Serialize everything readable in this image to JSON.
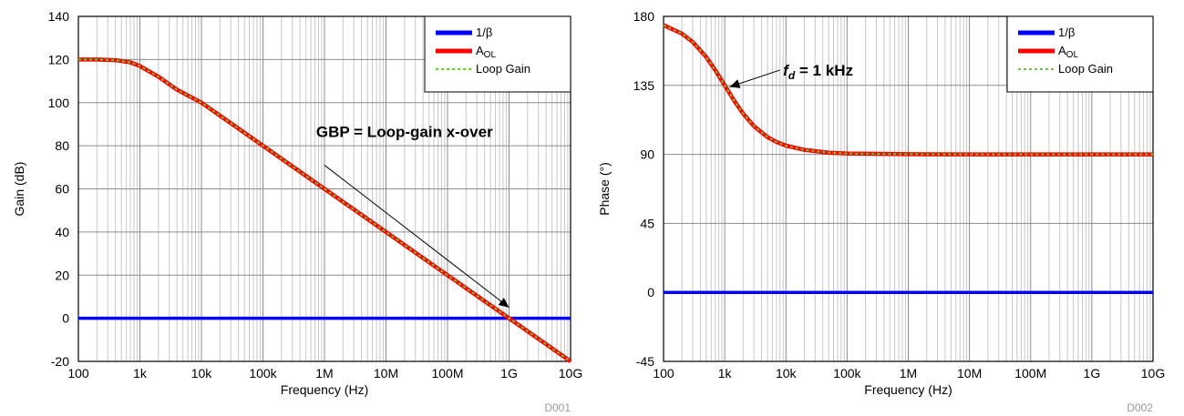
{
  "chart_data": [
    {
      "id": "D001",
      "type": "line",
      "title": "",
      "xlabel": "Frequency (Hz)",
      "ylabel": "Gain (dB)",
      "xscale": "log",
      "xlim": [
        100,
        10000000000
      ],
      "ylim": [
        -20,
        140
      ],
      "x_ticks": [
        100,
        1000,
        10000,
        100000,
        1000000,
        10000000,
        100000000,
        1000000000,
        10000000000
      ],
      "x_tick_labels": [
        "100",
        "1k",
        "10k",
        "100k",
        "1M",
        "10M",
        "100M",
        "1G",
        "10G"
      ],
      "y_ticks": [
        -20,
        0,
        20,
        40,
        60,
        80,
        100,
        120,
        140
      ],
      "y_tick_labels": [
        "-20",
        "0",
        "20",
        "40",
        "60",
        "80",
        "100",
        "120",
        "140"
      ],
      "grid": true,
      "legend_position": "top-right",
      "legend": [
        "1/β",
        "A_OL",
        "Loop Gain"
      ],
      "legend_parts": [
        [
          "1/β",
          ""
        ],
        [
          "A",
          "OL"
        ],
        [
          "Loop Gain",
          ""
        ]
      ],
      "series": [
        {
          "name": "1/β",
          "color": "#0000ff",
          "style": "solid",
          "x": [
            100,
            10000000000
          ],
          "y": [
            0,
            0
          ]
        },
        {
          "name": "A_OL",
          "color": "#ff0000",
          "style": "solid",
          "x": [
            100,
            200,
            400,
            700,
            1000,
            2000,
            4000,
            10000,
            100000,
            1000000,
            10000000,
            100000000,
            1000000000,
            10000000000
          ],
          "y": [
            120,
            120,
            119.7,
            118.7,
            117,
            112,
            106,
            100,
            80,
            60,
            40,
            20,
            0,
            -20
          ]
        },
        {
          "name": "Loop Gain",
          "color": "#66cc33",
          "style": "dashed",
          "x": [
            100,
            200,
            400,
            700,
            1000,
            2000,
            4000,
            10000,
            100000,
            1000000,
            10000000,
            100000000,
            1000000000,
            10000000000
          ],
          "y": [
            120,
            120,
            119.7,
            118.7,
            117,
            112,
            106,
            100,
            80,
            60,
            40,
            20,
            0,
            -20
          ]
        }
      ],
      "annotations": [
        {
          "text": "GBP = Loop-gain x-over",
          "text_x": 20000000,
          "text_y": 84,
          "arrow_from_x": 1000000,
          "arrow_from_y": 71,
          "arrow_to_x": 1000000000,
          "arrow_to_y": 5
        }
      ],
      "figure_id": "D001"
    },
    {
      "id": "D002",
      "type": "line",
      "title": "",
      "xlabel": "Frequency (Hz)",
      "ylabel": "Phase (°)",
      "xscale": "log",
      "xlim": [
        100,
        10000000000
      ],
      "ylim": [
        -45,
        180
      ],
      "x_ticks": [
        100,
        1000,
        10000,
        100000,
        1000000,
        10000000,
        100000000,
        1000000000,
        10000000000
      ],
      "x_tick_labels": [
        "100",
        "1k",
        "10k",
        "100k",
        "1M",
        "10M",
        "100M",
        "1G",
        "10G"
      ],
      "y_ticks": [
        -45,
        0,
        45,
        90,
        135,
        180
      ],
      "y_tick_labels": [
        "-45",
        "0",
        "45",
        "90",
        "135",
        "180"
      ],
      "grid": true,
      "legend_position": "top-right",
      "legend": [
        "1/β",
        "A_OL",
        "Loop Gain"
      ],
      "legend_parts": [
        [
          "1/β",
          ""
        ],
        [
          "A",
          "OL"
        ],
        [
          "Loop Gain",
          ""
        ]
      ],
      "series": [
        {
          "name": "1/β",
          "color": "#0000ff",
          "style": "solid",
          "x": [
            100,
            10000000000
          ],
          "y": [
            0,
            0
          ]
        },
        {
          "name": "A_OL",
          "color": "#ff0000",
          "style": "solid",
          "x": [
            100,
            200,
            300,
            500,
            700,
            1000,
            1500,
            2000,
            3000,
            5000,
            7000,
            10000,
            20000,
            50000,
            100000,
            1000000,
            10000000,
            100000000,
            1000000000,
            10000000000
          ],
          "y": [
            174.3,
            168.7,
            163.3,
            153.4,
            145,
            135,
            123.7,
            116.6,
            108.4,
            101.3,
            98.1,
            95.7,
            92.9,
            91.1,
            90.6,
            90.1,
            90,
            90,
            90,
            90
          ]
        },
        {
          "name": "Loop Gain",
          "color": "#66cc33",
          "style": "dashed",
          "x": [
            100,
            200,
            300,
            500,
            700,
            1000,
            1500,
            2000,
            3000,
            5000,
            7000,
            10000,
            20000,
            50000,
            100000,
            1000000,
            10000000,
            100000000,
            1000000000,
            10000000000
          ],
          "y": [
            174.3,
            168.7,
            163.3,
            153.4,
            145,
            135,
            123.7,
            116.6,
            108.4,
            101.3,
            98.1,
            95.7,
            92.9,
            91.1,
            90.6,
            90.1,
            90,
            90,
            90,
            90
          ]
        }
      ],
      "annotations": [
        {
          "label_prefix": "f",
          "label_sub": "d",
          "label_suffix": " = 1 kHz",
          "text_x": 9000,
          "text_y": 145,
          "arrow_from_x": 8000,
          "arrow_from_y": 145,
          "arrow_to_x": 1200,
          "arrow_to_y": 134
        }
      ],
      "figure_id": "D002"
    }
  ]
}
